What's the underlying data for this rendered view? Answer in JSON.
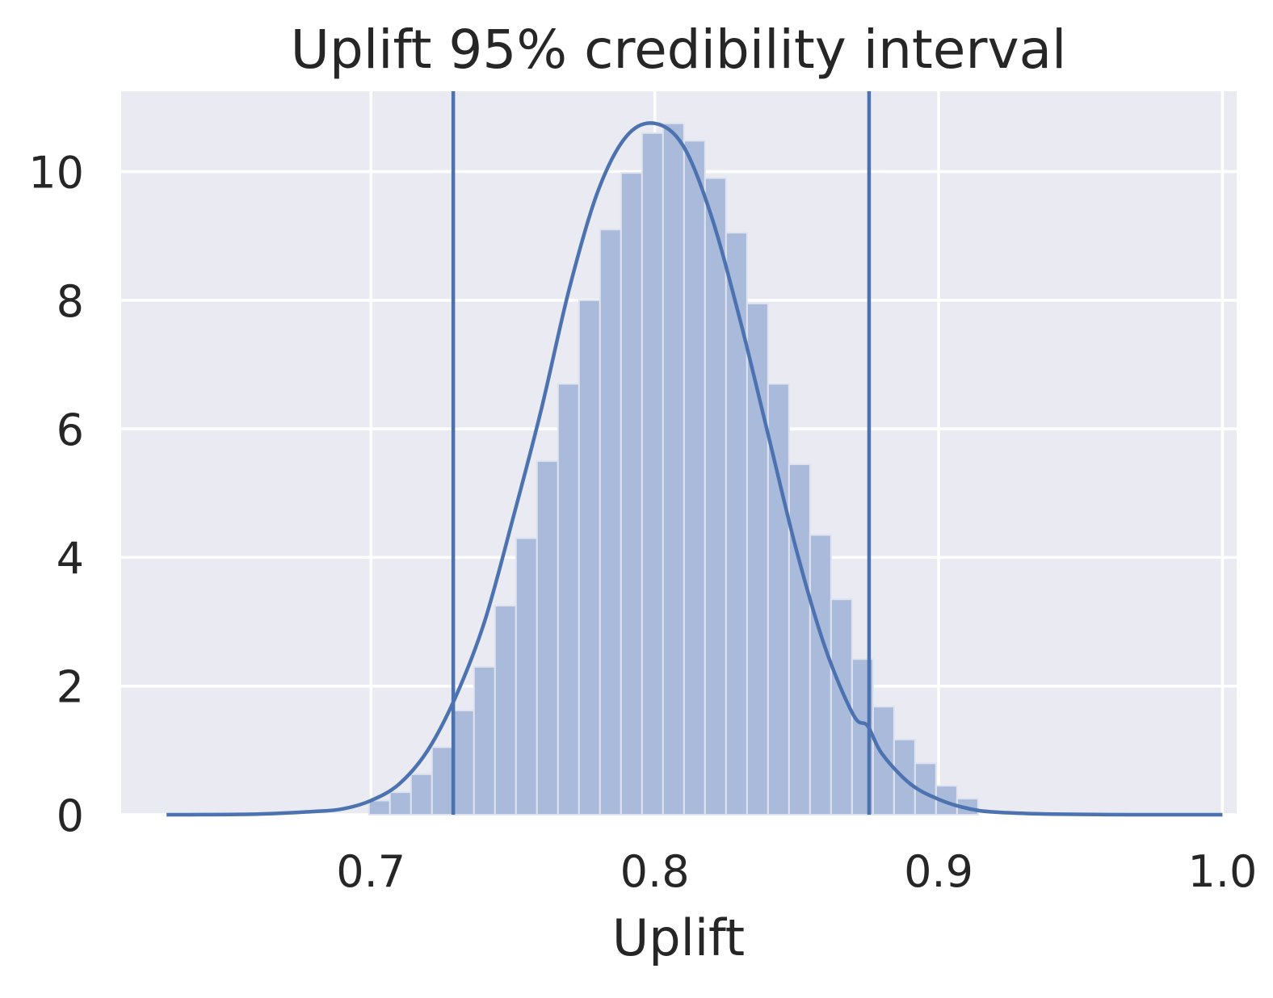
{
  "chart_data": {
    "type": "bar",
    "title": "Uplift 95% credibility interval",
    "xlabel": "Uplift",
    "ylabel": "",
    "xlim": [
      0.612,
      1.005
    ],
    "ylim": [
      0,
      11.25
    ],
    "x_ticks": [
      {
        "value": 0.7,
        "label": "0.7"
      },
      {
        "value": 0.8,
        "label": "0.8"
      },
      {
        "value": 0.9,
        "label": "0.9"
      },
      {
        "value": 1.0,
        "label": "1.0"
      }
    ],
    "y_ticks": [
      {
        "value": 0,
        "label": "0"
      },
      {
        "value": 2,
        "label": "2"
      },
      {
        "value": 4,
        "label": "4"
      },
      {
        "value": 6,
        "label": "6"
      },
      {
        "value": 8,
        "label": "8"
      },
      {
        "value": 10,
        "label": "10"
      }
    ],
    "grid": true,
    "histogram": {
      "bin_width": 0.0074,
      "bin_starts": [
        0.6993,
        0.7067,
        0.7141,
        0.7215,
        0.7289,
        0.7363,
        0.7437,
        0.7511,
        0.7585,
        0.7659,
        0.7733,
        0.7807,
        0.7881,
        0.7955,
        0.8029,
        0.8103,
        0.8177,
        0.8251,
        0.8325,
        0.8399,
        0.8473,
        0.8547,
        0.8621,
        0.8695,
        0.8769,
        0.8843,
        0.8917,
        0.8991,
        0.9065
      ],
      "values": [
        0.22,
        0.35,
        0.63,
        1.05,
        1.62,
        2.3,
        3.25,
        4.3,
        5.5,
        6.7,
        8.0,
        9.1,
        9.98,
        10.6,
        10.75,
        10.48,
        9.9,
        9.05,
        7.95,
        6.7,
        5.45,
        4.35,
        3.35,
        2.42,
        1.68,
        1.17,
        0.8,
        0.45,
        0.25
      ]
    },
    "density_curve": {
      "x": [
        0.628,
        0.66,
        0.68,
        0.69,
        0.7,
        0.71,
        0.72,
        0.73,
        0.74,
        0.75,
        0.76,
        0.77,
        0.78,
        0.79,
        0.8,
        0.81,
        0.82,
        0.83,
        0.84,
        0.85,
        0.86,
        0.87,
        0.875,
        0.88,
        0.89,
        0.9,
        0.91,
        0.92,
        0.94,
        0.97,
        1.0
      ],
      "y": [
        0.0,
        0.01,
        0.05,
        0.09,
        0.22,
        0.48,
        1.0,
        1.85,
        3.0,
        4.6,
        6.3,
        8.2,
        9.7,
        10.55,
        10.75,
        10.4,
        9.3,
        7.7,
        5.9,
        4.1,
        2.6,
        1.55,
        1.38,
        0.95,
        0.48,
        0.24,
        0.1,
        0.04,
        0.01,
        0.0,
        0.0
      ]
    },
    "interval_lines": [
      0.729,
      0.8755
    ]
  }
}
